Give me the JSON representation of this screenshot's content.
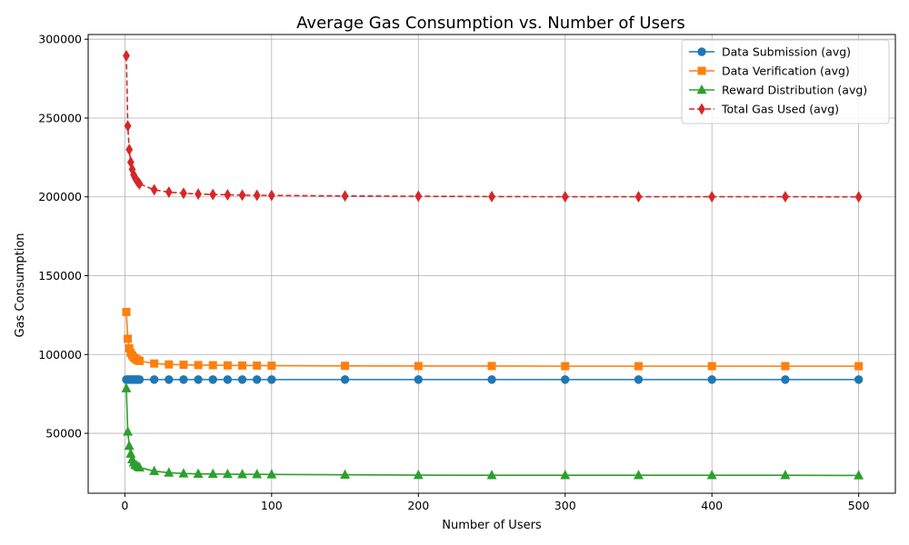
{
  "chart_data": {
    "type": "line",
    "title": "Average Gas Consumption vs. Number of Users",
    "xlabel": "Number of Users",
    "ylabel": "Gas Consumption",
    "xlim": [
      -25,
      525
    ],
    "ylim": [
      12000,
      303000
    ],
    "x_ticks": [
      0,
      100,
      200,
      300,
      400,
      500
    ],
    "y_ticks": [
      50000,
      100000,
      150000,
      200000,
      250000,
      300000
    ],
    "grid": true,
    "legend_position": "top-right",
    "x": [
      1,
      2,
      3,
      4,
      5,
      6,
      7,
      8,
      9,
      10,
      20,
      30,
      40,
      50,
      60,
      70,
      80,
      90,
      100,
      150,
      200,
      250,
      300,
      350,
      400,
      450,
      500
    ],
    "series": [
      {
        "name": "Data Submission (avg)",
        "color": "#1f77b4",
        "marker": "circle",
        "dashed": false,
        "values": [
          84100,
          84100,
          84100,
          84100,
          84100,
          84100,
          84100,
          84100,
          84100,
          84100,
          84100,
          84100,
          84100,
          84100,
          84100,
          84100,
          84100,
          84100,
          84100,
          84100,
          84100,
          84100,
          84100,
          84100,
          84100,
          84100,
          84100
        ]
      },
      {
        "name": "Data Verification (avg)",
        "color": "#ff7f0e",
        "marker": "square",
        "dashed": false,
        "values": [
          127000,
          110000,
          104000,
          101000,
          99500,
          98200,
          97400,
          96800,
          96300,
          95900,
          94300,
          93700,
          93500,
          93300,
          93200,
          93100,
          93000,
          93000,
          92900,
          92800,
          92700,
          92700,
          92600,
          92600,
          92600,
          92600,
          92600
        ]
      },
      {
        "name": "Reward Distribution (avg)",
        "color": "#2ca02c",
        "marker": "triangle",
        "dashed": false,
        "values": [
          78500,
          51000,
          42000,
          37000,
          33500,
          31500,
          30000,
          29500,
          28800,
          28300,
          26000,
          25000,
          24500,
          24300,
          24200,
          24100,
          24000,
          24000,
          23900,
          23700,
          23500,
          23400,
          23400,
          23400,
          23400,
          23400,
          23300
        ]
      },
      {
        "name": "Total Gas Used (avg)",
        "color": "#d62728",
        "marker": "diamond",
        "dashed": true,
        "values": [
          289500,
          245000,
          230000,
          222000,
          217500,
          214000,
          212000,
          210500,
          209200,
          208300,
          204500,
          203000,
          202300,
          201800,
          201500,
          201300,
          201100,
          201000,
          200900,
          200600,
          200400,
          200200,
          200100,
          200100,
          200100,
          200100,
          200000
        ]
      }
    ]
  }
}
